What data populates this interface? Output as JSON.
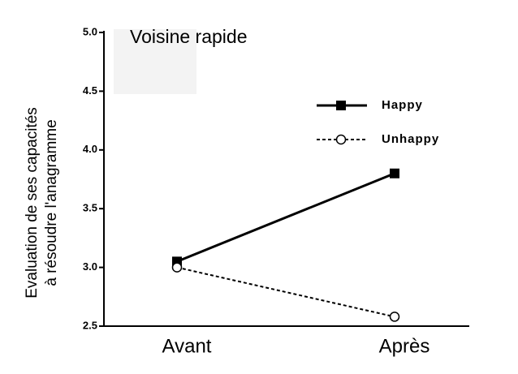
{
  "chart_data": {
    "type": "line",
    "title": "Voisine rapide",
    "y_label": [
      "Evaluation de ses capacités",
      "à résoudre l'anagramme"
    ],
    "categories": [
      "Avant",
      "Après"
    ],
    "series": [
      {
        "name": "Happy",
        "color": "#000000",
        "line_style": "solid",
        "marker": "square",
        "values": [
          3.05,
          3.8
        ]
      },
      {
        "name": "Unhappy",
        "color": "#000000",
        "line_style": "dashed",
        "marker": "circle",
        "values": [
          3.0,
          2.58
        ]
      }
    ],
    "ylim": [
      2.5,
      5.0
    ],
    "yticks": [
      2.5,
      {
        "value": 3.0,
        "label": "3.0"
      },
      3.5,
      {
        "value": 4.0,
        "label": "4.0"
      },
      4.5,
      {
        "value": 5.0,
        "label": "5.0"
      }
    ],
    "grid": false,
    "legend": "upper right"
  }
}
